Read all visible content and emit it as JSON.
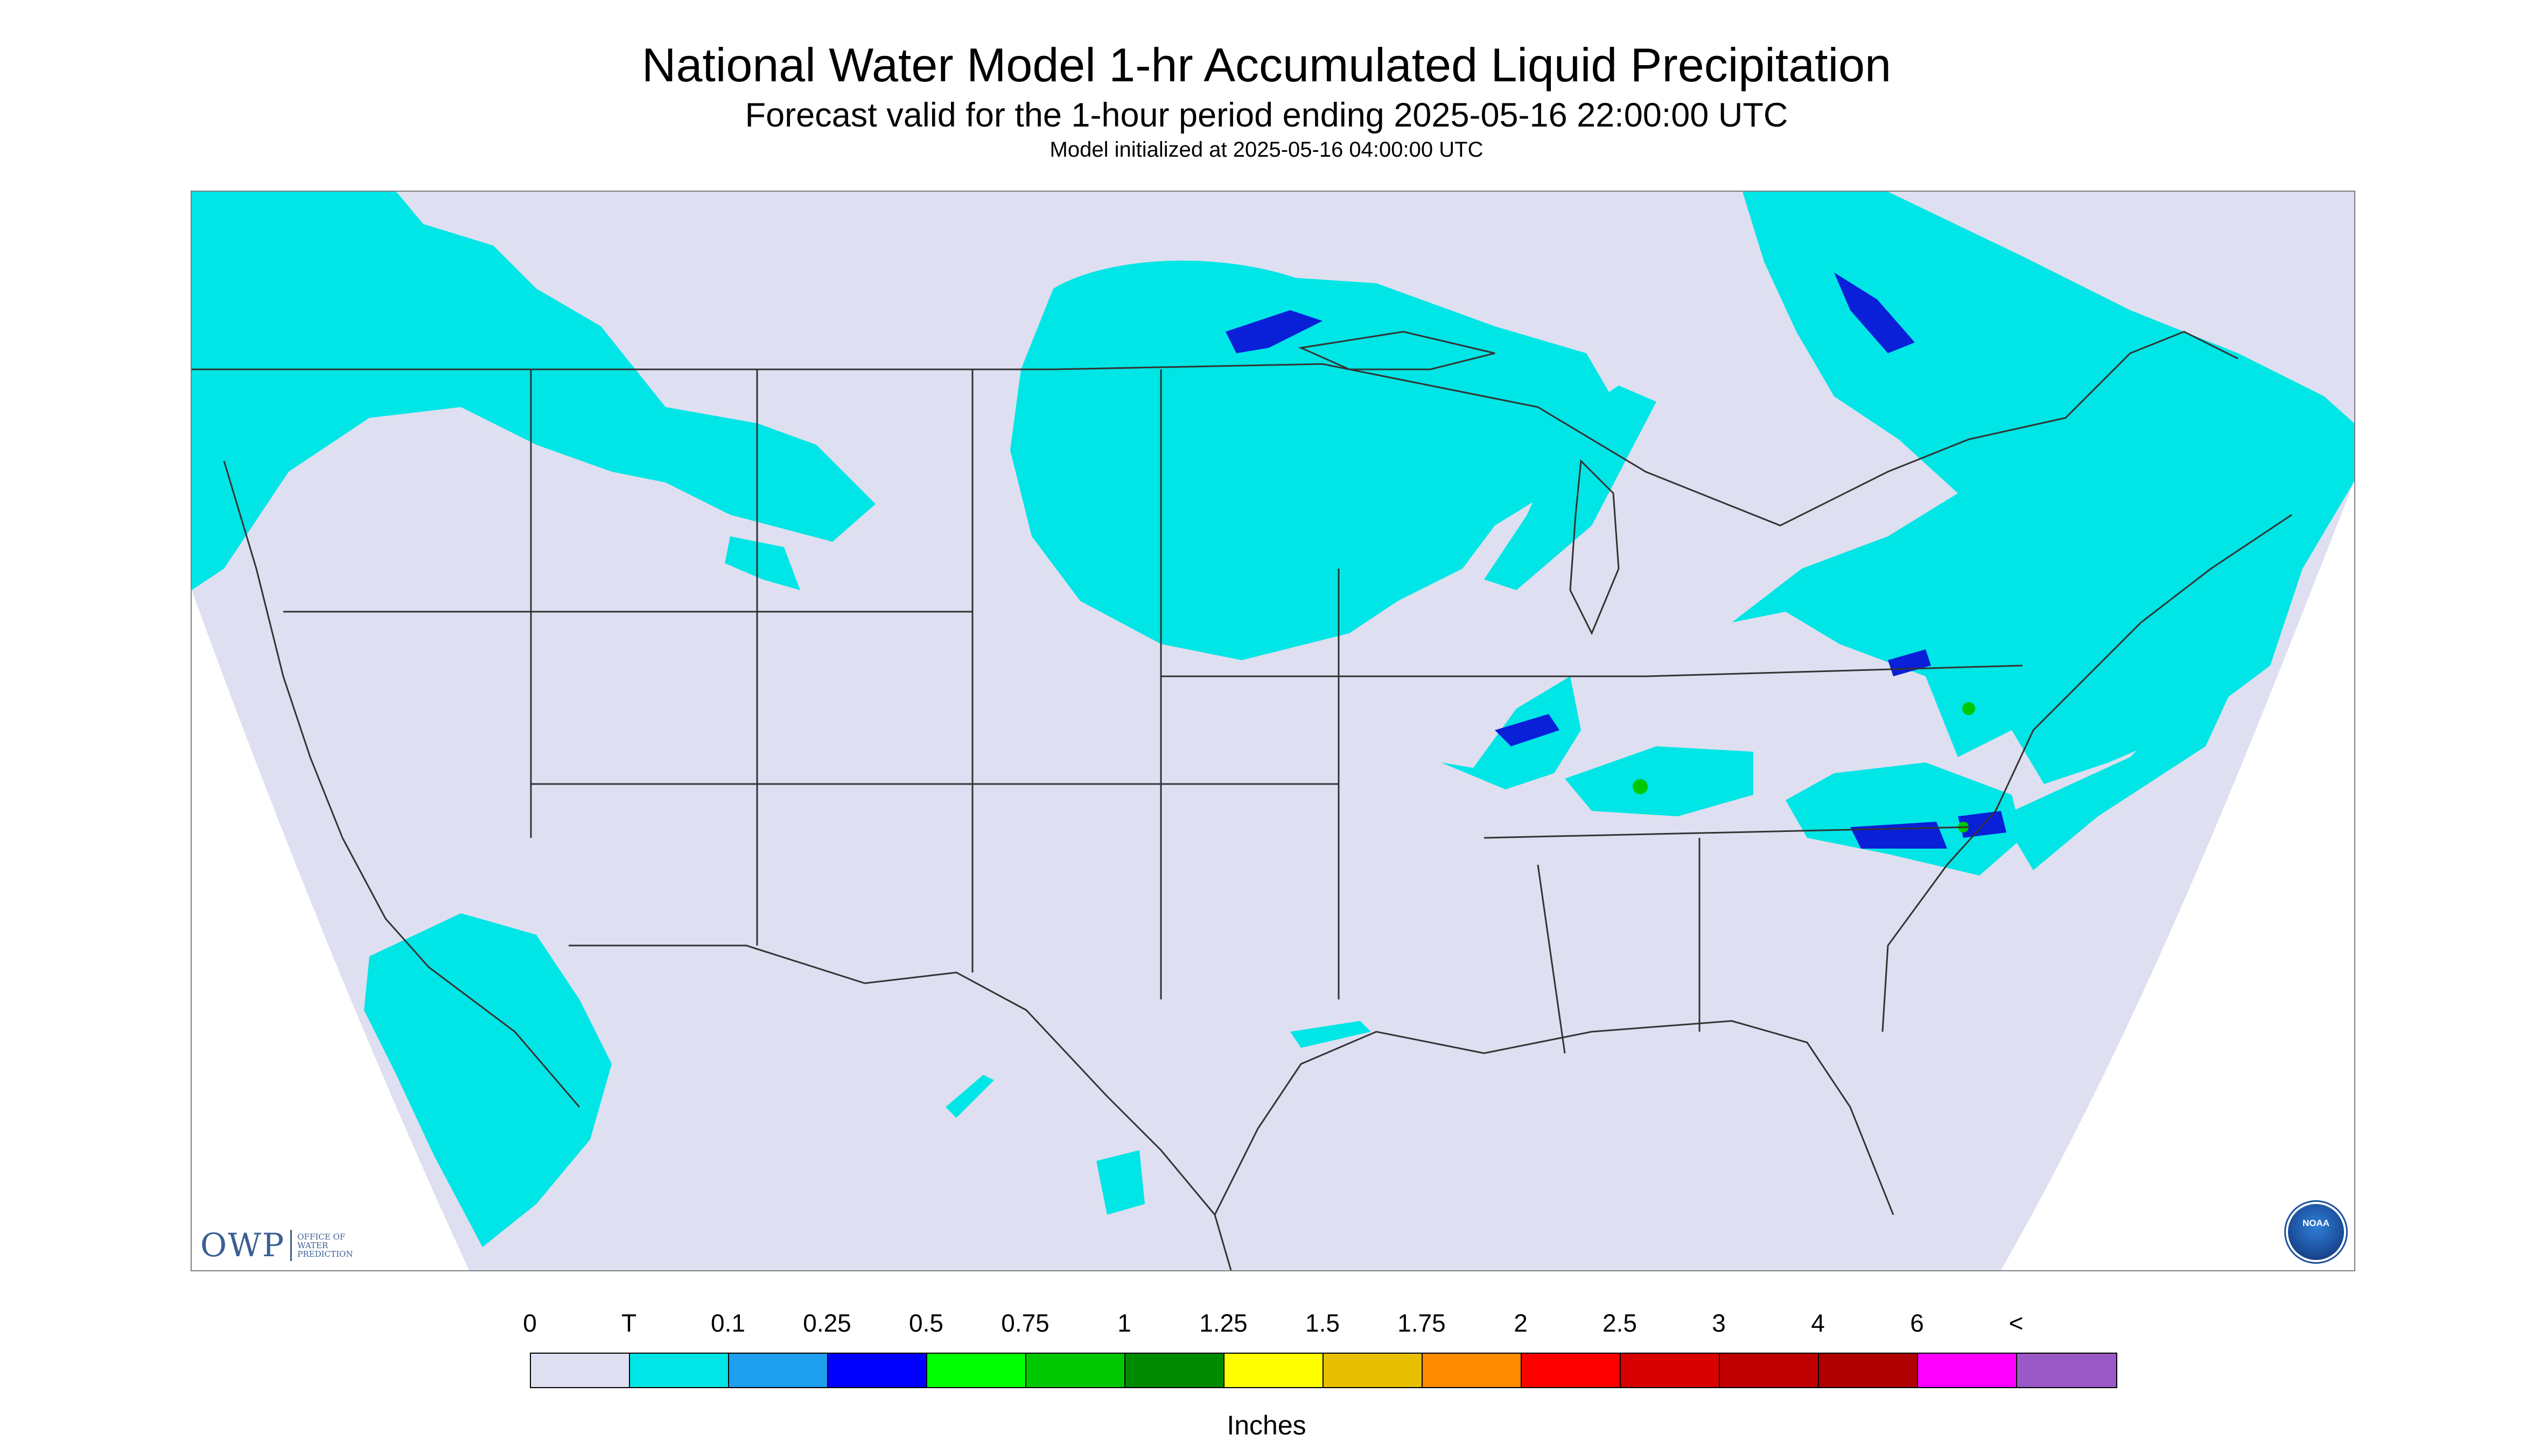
{
  "titles": {
    "main": "National Water Model 1-hr Accumulated Liquid Precipitation",
    "forecast": "Forecast valid for the 1-hour period ending 2025-05-16 22:00:00 UTC",
    "init": "Model initialized at 2025-05-16 04:00:00 UTC"
  },
  "map": {
    "background_color": "#dedff0",
    "outside_color": "#ffffff",
    "precip_color": "#00e5e5",
    "heavy_color": "#0a1fd8",
    "light_blue_color": "#1e9ff0",
    "green_color": "#00c800",
    "boundary_color": "#333333"
  },
  "logos": {
    "owp_mark": "OWP",
    "owp_text": [
      "OFFICE OF",
      "WATER",
      "PREDICTION"
    ],
    "noaa_label": "NOAA"
  },
  "legend": {
    "ticks": [
      "0",
      "T",
      "0.1",
      "0.25",
      "0.5",
      "0.75",
      "1",
      "1.25",
      "1.5",
      "1.75",
      "2",
      "2.5",
      "3",
      "4",
      "6",
      "<"
    ],
    "colors": [
      "#dedff0",
      "#00e5e5",
      "#1e9ff0",
      "#0000ff",
      "#00ff00",
      "#00c800",
      "#008a00",
      "#ffff00",
      "#e6c000",
      "#ff8c00",
      "#ff0000",
      "#d80000",
      "#c00000",
      "#b00000",
      "#ff00ff",
      "#9b59c8"
    ],
    "units": "Inches"
  }
}
